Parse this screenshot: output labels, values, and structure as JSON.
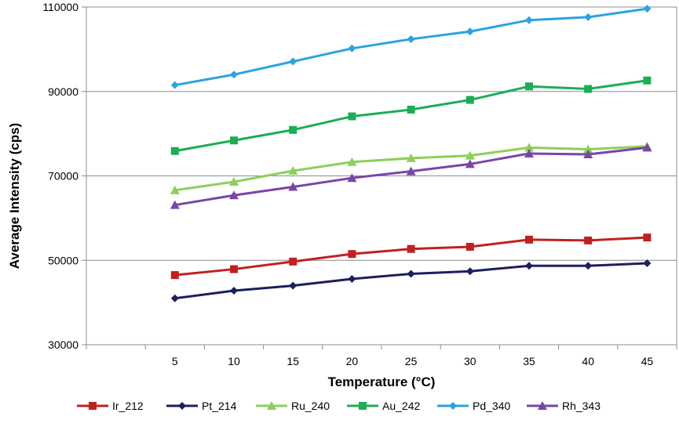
{
  "chart_data": {
    "type": "line",
    "title": "",
    "xlabel": "Temperature (°C)",
    "ylabel": "Average Intensity (cps)",
    "categories": [
      "5",
      "10",
      "15",
      "20",
      "25",
      "30",
      "35",
      "40",
      "45"
    ],
    "ylim": [
      30000,
      110000
    ],
    "yticks": [
      "30000",
      "50000",
      "70000",
      "90000",
      "110000"
    ],
    "y_tick_values": [
      30000,
      50000,
      70000,
      90000,
      110000
    ],
    "grid": "horizontal",
    "legend_position": "bottom",
    "series": [
      {
        "name": "Ir_212",
        "color": "#c0211f",
        "marker": "square",
        "values": [
          46500,
          47900,
          49700,
          51500,
          52700,
          53200,
          54900,
          54700,
          55400
        ]
      },
      {
        "name": "Pt_214",
        "color": "#1c1f5e",
        "marker": "diamond",
        "values": [
          41000,
          42800,
          44000,
          45600,
          46800,
          47400,
          48700,
          48700,
          49300
        ]
      },
      {
        "name": "Ru_240",
        "color": "#8dcf5a",
        "marker": "triangle",
        "values": [
          66600,
          68600,
          71200,
          73300,
          74200,
          74800,
          76700,
          76300,
          77000
        ]
      },
      {
        "name": "Au_242",
        "color": "#1aae55",
        "marker": "square",
        "values": [
          75900,
          78400,
          80900,
          84100,
          85700,
          88000,
          91200,
          90600,
          92600
        ]
      },
      {
        "name": "Pd_340",
        "color": "#2ba3e0",
        "marker": "diamond",
        "values": [
          91500,
          94000,
          97100,
          100200,
          102400,
          104200,
          106900,
          107600,
          109600
        ]
      },
      {
        "name": "Rh_343",
        "color": "#7a45a8",
        "marker": "triangle",
        "values": [
          63100,
          65400,
          67400,
          69500,
          71100,
          72800,
          75300,
          75100,
          76700
        ]
      }
    ]
  }
}
